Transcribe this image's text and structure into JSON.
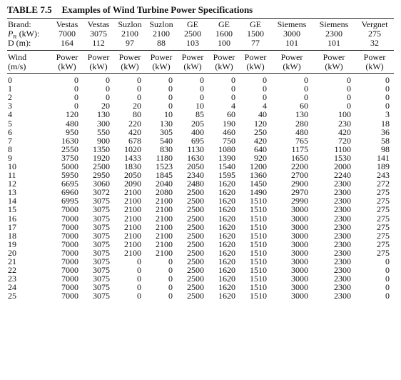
{
  "table": {
    "number": "TABLE 7.5",
    "title": "Examples of Wind Turbine Power Specifications",
    "spec_rows": {
      "brand": {
        "label": "Brand:",
        "values": [
          "Vestas",
          "Vestas",
          "Suzlon",
          "Suzlon",
          "GE",
          "GE",
          "GE",
          "Siemens",
          "Siemens",
          "Vergnet"
        ]
      },
      "rated_power": {
        "label_main": "P",
        "label_sub": "R",
        "label_rest": " (kW):",
        "values": [
          "7000",
          "3075",
          "2100",
          "2100",
          "2500",
          "1600",
          "1500",
          "3000",
          "2300",
          "275"
        ]
      },
      "diameter": {
        "label": "D (m):",
        "values": [
          "164",
          "112",
          "97",
          "88",
          "103",
          "100",
          "77",
          "101",
          "101",
          "32"
        ]
      }
    },
    "header": {
      "wind_label": "Wind",
      "wind_unit": "(m/s)",
      "power_label": "Power",
      "power_unit": "(kW)"
    },
    "rows": [
      {
        "wind": "0",
        "values": [
          "0",
          "0",
          "0",
          "0",
          "0",
          "0",
          "0",
          "0",
          "0",
          "0"
        ]
      },
      {
        "wind": "1",
        "values": [
          "0",
          "0",
          "0",
          "0",
          "0",
          "0",
          "0",
          "0",
          "0",
          "0"
        ]
      },
      {
        "wind": "2",
        "values": [
          "0",
          "0",
          "0",
          "0",
          "0",
          "0",
          "0",
          "0",
          "0",
          "0"
        ]
      },
      {
        "wind": "3",
        "values": [
          "0",
          "20",
          "20",
          "0",
          "10",
          "4",
          "4",
          "60",
          "0",
          "0"
        ]
      },
      {
        "wind": "4",
        "values": [
          "120",
          "130",
          "80",
          "10",
          "85",
          "60",
          "40",
          "130",
          "100",
          "3"
        ]
      },
      {
        "wind": "5",
        "values": [
          "480",
          "300",
          "220",
          "130",
          "205",
          "190",
          "120",
          "280",
          "230",
          "18"
        ]
      },
      {
        "wind": "6",
        "values": [
          "950",
          "550",
          "420",
          "305",
          "400",
          "460",
          "250",
          "480",
          "420",
          "36"
        ]
      },
      {
        "wind": "7",
        "values": [
          "1630",
          "900",
          "678",
          "540",
          "695",
          "750",
          "420",
          "765",
          "720",
          "58"
        ]
      },
      {
        "wind": "8",
        "values": [
          "2550",
          "1350",
          "1020",
          "830",
          "1130",
          "1080",
          "640",
          "1175",
          "1100",
          "98"
        ]
      },
      {
        "wind": "9",
        "values": [
          "3750",
          "1920",
          "1433",
          "1180",
          "1630",
          "1390",
          "920",
          "1650",
          "1530",
          "141"
        ]
      },
      {
        "wind": "10",
        "values": [
          "5000",
          "2500",
          "1830",
          "1523",
          "2050",
          "1540",
          "1200",
          "2200",
          "2000",
          "189"
        ]
      },
      {
        "wind": "11",
        "values": [
          "5950",
          "2950",
          "2050",
          "1845",
          "2340",
          "1595",
          "1360",
          "2700",
          "2240",
          "243"
        ]
      },
      {
        "wind": "12",
        "values": [
          "6695",
          "3060",
          "2090",
          "2040",
          "2480",
          "1620",
          "1450",
          "2900",
          "2300",
          "272"
        ]
      },
      {
        "wind": "13",
        "values": [
          "6960",
          "3072",
          "2100",
          "2080",
          "2500",
          "1620",
          "1490",
          "2970",
          "2300",
          "275"
        ]
      },
      {
        "wind": "14",
        "values": [
          "6995",
          "3075",
          "2100",
          "2100",
          "2500",
          "1620",
          "1510",
          "2990",
          "2300",
          "275"
        ]
      },
      {
        "wind": "15",
        "values": [
          "7000",
          "3075",
          "2100",
          "2100",
          "2500",
          "1620",
          "1510",
          "3000",
          "2300",
          "275"
        ]
      },
      {
        "wind": "16",
        "values": [
          "7000",
          "3075",
          "2100",
          "2100",
          "2500",
          "1620",
          "1510",
          "3000",
          "2300",
          "275"
        ]
      },
      {
        "wind": "17",
        "values": [
          "7000",
          "3075",
          "2100",
          "2100",
          "2500",
          "1620",
          "1510",
          "3000",
          "2300",
          "275"
        ]
      },
      {
        "wind": "18",
        "values": [
          "7000",
          "3075",
          "2100",
          "2100",
          "2500",
          "1620",
          "1510",
          "3000",
          "2300",
          "275"
        ]
      },
      {
        "wind": "19",
        "values": [
          "7000",
          "3075",
          "2100",
          "2100",
          "2500",
          "1620",
          "1510",
          "3000",
          "2300",
          "275"
        ]
      },
      {
        "wind": "20",
        "values": [
          "7000",
          "3075",
          "2100",
          "2100",
          "2500",
          "1620",
          "1510",
          "3000",
          "2300",
          "275"
        ]
      },
      {
        "wind": "21",
        "values": [
          "7000",
          "3075",
          "0",
          "0",
          "2500",
          "1620",
          "1510",
          "3000",
          "2300",
          "0"
        ]
      },
      {
        "wind": "22",
        "values": [
          "7000",
          "3075",
          "0",
          "0",
          "2500",
          "1620",
          "1510",
          "3000",
          "2300",
          "0"
        ]
      },
      {
        "wind": "23",
        "values": [
          "7000",
          "3075",
          "0",
          "0",
          "2500",
          "1620",
          "1510",
          "3000",
          "2300",
          "0"
        ]
      },
      {
        "wind": "24",
        "values": [
          "7000",
          "3075",
          "0",
          "0",
          "2500",
          "1620",
          "1510",
          "3000",
          "2300",
          "0"
        ]
      },
      {
        "wind": "25",
        "values": [
          "7000",
          "3075",
          "0",
          "0",
          "2500",
          "1620",
          "1510",
          "3000",
          "2300",
          "0"
        ]
      }
    ]
  }
}
